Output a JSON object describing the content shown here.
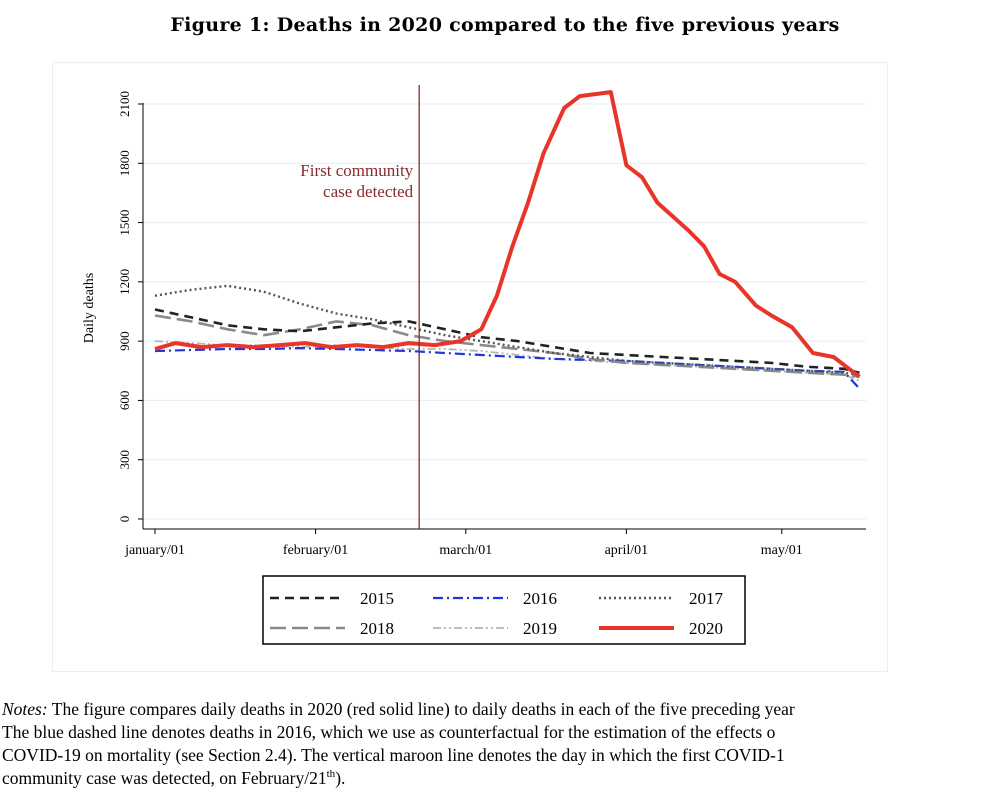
{
  "figure": {
    "title": "Figure 1: Deaths in 2020 compared to the five previous years"
  },
  "notes": {
    "label": "Notes:",
    "line1": " The figure compares daily deaths in 2020 (red solid line) to daily deaths in each of the five preceding year",
    "line2": "The blue dashed line denotes deaths in 2016, which we use as counterfactual for the estimation of the effects o",
    "line3": "COVID-19 on mortality (see Section 2.4).  The vertical maroon line denotes the day in which the first COVID-1",
    "line4_pre": "community case was detected, on February/21",
    "line4_sup": "th",
    "line4_post": ")."
  },
  "chart_data": {
    "type": "line",
    "title": "",
    "xlabel": "",
    "ylabel": "Daily deaths",
    "ylim": [
      0,
      2100
    ],
    "xlim_day_of_year": [
      1,
      137
    ],
    "yticks": [
      0,
      300,
      600,
      900,
      1200,
      1500,
      1800,
      2100
    ],
    "ytick_labels": [
      "0",
      "300",
      "600",
      "900",
      "1200",
      "1500",
      "1800",
      "2100"
    ],
    "xticks_day_of_year": [
      1,
      32,
      61,
      92,
      122
    ],
    "xtick_labels": [
      "january/01",
      "february/01",
      "march/01",
      "april/01",
      "may/01"
    ],
    "grid": true,
    "legend_placement": "bottom",
    "annotation": {
      "lines": [
        "First community",
        "case detected"
      ],
      "x_day_of_year": 52,
      "color": "#8b2a2a"
    },
    "series": [
      {
        "name": "2015",
        "color": "#222222",
        "dash": "dashed",
        "x": [
          1,
          8,
          15,
          22,
          29,
          36,
          43,
          50,
          57,
          64,
          71,
          78,
          85,
          92,
          99,
          106,
          113,
          120,
          127,
          134,
          137
        ],
        "y": [
          1060,
          1020,
          980,
          960,
          950,
          970,
          990,
          1000,
          960,
          920,
          900,
          870,
          840,
          830,
          820,
          810,
          800,
          790,
          770,
          760,
          740
        ]
      },
      {
        "name": "2016",
        "color": "#1d35e0",
        "dash": "dashdot",
        "x": [
          1,
          8,
          15,
          22,
          29,
          36,
          43,
          50,
          57,
          64,
          71,
          78,
          85,
          92,
          99,
          106,
          113,
          120,
          127,
          134,
          137
        ],
        "y": [
          850,
          855,
          860,
          860,
          865,
          860,
          855,
          850,
          840,
          830,
          820,
          810,
          805,
          800,
          790,
          780,
          770,
          760,
          750,
          745,
          660
        ]
      },
      {
        "name": "2017",
        "color": "#555555",
        "dash": "dotted",
        "x": [
          1,
          8,
          15,
          22,
          29,
          36,
          43,
          50,
          57,
          64,
          71,
          78,
          85,
          92,
          99,
          106,
          113,
          120,
          127,
          134,
          137
        ],
        "y": [
          1130,
          1160,
          1180,
          1150,
          1090,
          1040,
          1010,
          970,
          930,
          900,
          870,
          840,
          820,
          800,
          790,
          780,
          770,
          760,
          750,
          740,
          730
        ]
      },
      {
        "name": "2018",
        "color": "#8a8a8a",
        "dash": "longdash",
        "x": [
          1,
          8,
          15,
          22,
          29,
          36,
          43,
          50,
          57,
          64,
          71,
          78,
          85,
          92,
          99,
          106,
          113,
          120,
          127,
          134,
          137
        ],
        "y": [
          1030,
          1000,
          960,
          930,
          960,
          1000,
          980,
          930,
          900,
          880,
          860,
          840,
          810,
          790,
          780,
          770,
          760,
          750,
          740,
          730,
          720
        ]
      },
      {
        "name": "2019",
        "color": "#b4b4b4",
        "dash": "dashdotdot",
        "x": [
          1,
          8,
          15,
          22,
          29,
          36,
          43,
          50,
          57,
          64,
          71,
          78,
          85,
          92,
          99,
          106,
          113,
          120,
          127,
          134,
          137
        ],
        "y": [
          900,
          890,
          880,
          880,
          870,
          880,
          870,
          860,
          860,
          850,
          830,
          810,
          800,
          790,
          780,
          770,
          760,
          750,
          740,
          730,
          700
        ]
      },
      {
        "name": "2020",
        "color": "#e8352a",
        "dash": "solid",
        "x": [
          1,
          5,
          10,
          15,
          20,
          25,
          30,
          35,
          40,
          45,
          50,
          55,
          60,
          64,
          67,
          70,
          73,
          76,
          80,
          83,
          86,
          89,
          92,
          95,
          98,
          101,
          104,
          107,
          110,
          113,
          117,
          120,
          124,
          128,
          132,
          136,
          137
        ],
        "y": [
          860,
          890,
          870,
          880,
          870,
          880,
          890,
          870,
          880,
          870,
          890,
          880,
          900,
          960,
          1130,
          1380,
          1600,
          1850,
          2080,
          2140,
          2150,
          2160,
          1790,
          1730,
          1600,
          1530,
          1460,
          1380,
          1240,
          1200,
          1080,
          1030,
          970,
          840,
          820,
          740,
          720
        ]
      }
    ]
  }
}
